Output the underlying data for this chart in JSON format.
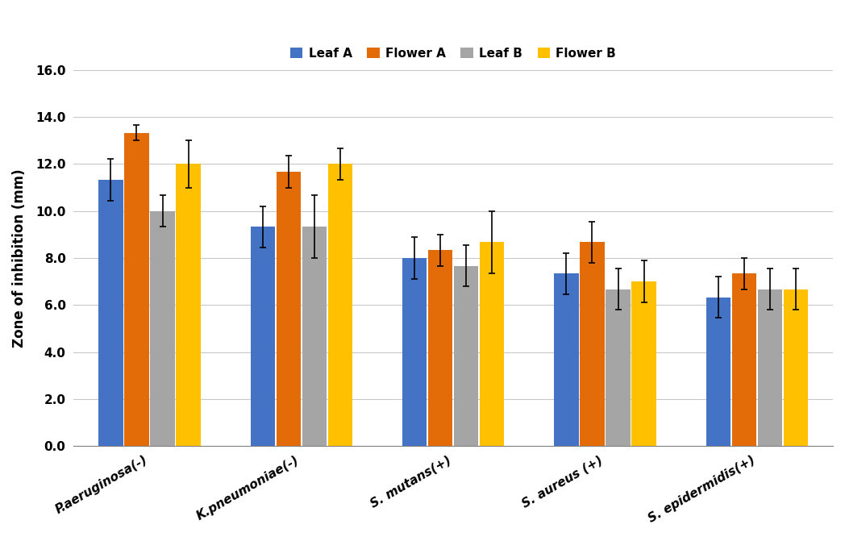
{
  "categories": [
    "P.aeruginosa(-)",
    "K.pneumoniae(-)",
    "S. mutans(+)",
    "S. aureus (+)",
    "S. epidermidis(+)"
  ],
  "series": {
    "Leaf A": [
      11.33,
      9.33,
      8.0,
      7.33,
      6.33
    ],
    "Flower A": [
      13.33,
      11.67,
      8.33,
      8.67,
      7.33
    ],
    "Leaf B": [
      10.0,
      9.33,
      7.67,
      6.67,
      6.67
    ],
    "Flower B": [
      12.0,
      12.0,
      8.67,
      7.0,
      6.67
    ]
  },
  "errors": {
    "Leaf A": [
      0.88,
      0.88,
      0.88,
      0.88,
      0.88
    ],
    "Flower A": [
      0.33,
      0.67,
      0.67,
      0.88,
      0.67
    ],
    "Leaf B": [
      0.67,
      1.33,
      0.88,
      0.88,
      0.88
    ],
    "Flower B": [
      1.0,
      0.67,
      1.33,
      0.88,
      0.88
    ]
  },
  "colors": {
    "Leaf A": "#4472C4",
    "Flower A": "#E36C09",
    "Leaf B": "#A5A5A5",
    "Flower B": "#FFC000"
  },
  "ylabel": "Zone of inhibition (mm)",
  "ylim": [
    0.0,
    16.0
  ],
  "yticks": [
    0.0,
    2.0,
    4.0,
    6.0,
    8.0,
    10.0,
    12.0,
    14.0,
    16.0
  ],
  "ytick_labels": [
    "0.0",
    "2.0",
    "4.0",
    "6.0",
    "8.0",
    "10.0",
    "12.0",
    "14.0",
    "16.0"
  ],
  "bar_width": 0.16,
  "legend_order": [
    "Leaf A",
    "Flower A",
    "Leaf B",
    "Flower B"
  ],
  "background_color": "#FFFFFF",
  "grid_color": "#C8C8C8",
  "axis_fontsize": 12,
  "tick_fontsize": 11,
  "legend_fontsize": 11
}
